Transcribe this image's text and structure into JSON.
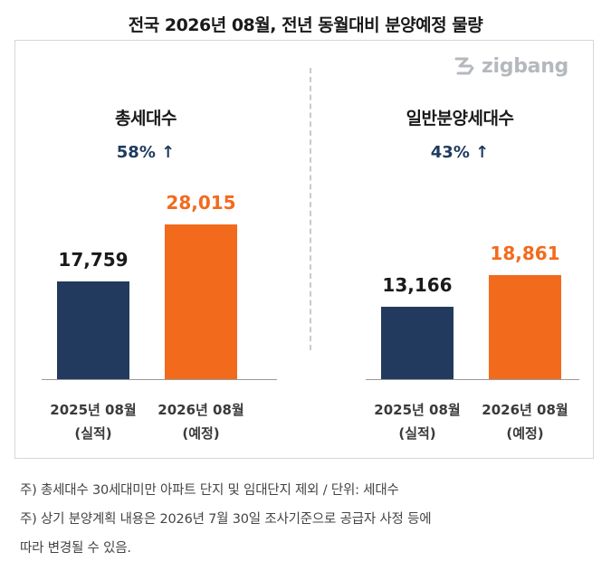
{
  "title": "전국 2026년 08월, 전년 동월대비 분양예정 물량",
  "logo": {
    "text": "zigbang",
    "icon": "zigbang-logo-icon"
  },
  "colors": {
    "actual": "#223a5e",
    "planned": "#f26b1d",
    "change": "#1f3a5f"
  },
  "chart_data": [
    {
      "type": "bar",
      "title": "총세대수",
      "change": "58% ↑",
      "categories": [
        "2025년 08월",
        "2026년 08월"
      ],
      "category_sub": [
        "(실적)",
        "(예정)"
      ],
      "values": [
        17759,
        28015
      ],
      "value_labels": [
        "17,759",
        "28,015"
      ]
    },
    {
      "type": "bar",
      "title": "일반분양세대수",
      "change": "43% ↑",
      "categories": [
        "2025년 08월",
        "2026년 08월"
      ],
      "category_sub": [
        "(실적)",
        "(예정)"
      ],
      "values": [
        13166,
        18861
      ],
      "value_labels": [
        "13,166",
        "18,861"
      ]
    }
  ],
  "notes": [
    "주) 총세대수 30세대미만 아파트  단지 및 임대단지 제외 / 단위: 세대수",
    "주) 상기 분양계획 내용은 2026년 7월 30일 조사기준으로 공급자 사정 등에",
    "따라 변경될 수 있음."
  ]
}
